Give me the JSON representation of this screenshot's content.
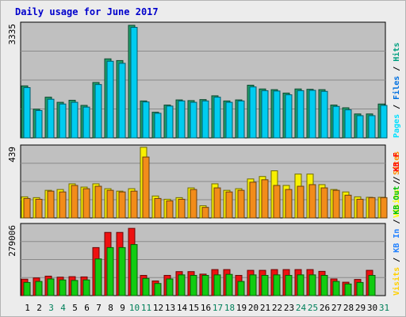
{
  "chart_data": {
    "type": "bar",
    "title": "Daily usage for June 2017",
    "categories": [
      "1",
      "2",
      "3",
      "4",
      "5",
      "6",
      "7",
      "8",
      "9",
      "10",
      "11",
      "12",
      "13",
      "14",
      "15",
      "16",
      "17",
      "18",
      "19",
      "20",
      "21",
      "22",
      "23",
      "24",
      "25",
      "26",
      "27",
      "28",
      "29",
      "30",
      "31"
    ],
    "weekend_days": [
      "3",
      "4",
      "10",
      "11",
      "17",
      "18",
      "24",
      "25",
      "31"
    ],
    "panels": [
      {
        "id": "top",
        "max_label": "3335",
        "ylim": [
          0,
          3335
        ],
        "legend": [
          "Pages",
          "Files",
          "Hits"
        ],
        "legend_colors": [
          "#00e0ff",
          "#0070e0",
          "#00a080"
        ],
        "series": [
          {
            "name": "Hits",
            "color": "#1f9e6a",
            "values": [
              1520,
              840,
              1190,
              1040,
              1100,
              950,
              1620,
              2310,
              2260,
              3290,
              1080,
              750,
              960,
              1110,
              1090,
              1120,
              1230,
              1080,
              1110,
              1540,
              1430,
              1410,
              1310,
              1430,
              1420,
              1410,
              960,
              880,
              700,
              700,
              990
            ]
          },
          {
            "name": "Pages",
            "color": "#00ccf0",
            "values": [
              1470,
              800,
              1130,
              990,
              1040,
              900,
              1560,
              2240,
              2180,
              3230,
              1050,
              720,
              930,
              1080,
              1040,
              1080,
              1190,
              1040,
              1080,
              1490,
              1380,
              1370,
              1260,
              1380,
              1390,
              1360,
              920,
              820,
              650,
              650,
              950
            ]
          }
        ]
      },
      {
        "id": "mid",
        "max_label": "439",
        "ylim": [
          0,
          439
        ],
        "legend": [
          "Visits",
          "Sites"
        ],
        "legend_colors": [
          "#ffff00",
          "#ff8c00"
        ],
        "series": [
          {
            "name": "Visits",
            "color": "#f8f000",
            "values": [
              130,
              125,
              170,
              175,
              210,
              190,
              210,
              180,
              165,
              180,
              435,
              135,
              115,
              125,
              185,
              75,
              210,
              170,
              180,
              240,
              255,
              290,
              200,
              270,
              270,
              205,
              175,
              160,
              130,
              127,
              127
            ]
          },
          {
            "name": "Sites",
            "color": "#f28c1a",
            "values": [
              120,
              115,
              165,
              160,
              200,
              180,
              195,
              170,
              160,
              165,
              375,
              120,
              105,
              115,
              175,
              65,
              185,
              160,
              170,
              220,
              235,
              200,
              175,
              195,
              205,
              185,
              170,
              140,
              115,
              125,
              125
            ]
          }
        ]
      },
      {
        "id": "bot",
        "max_label": "279006",
        "ylim": [
          0,
          279006
        ],
        "legend": [
          "Visits",
          "KB In",
          "KB Out",
          "KB F"
        ],
        "legend_colors": [
          "#ffd000",
          "#2080ff",
          "#00c000",
          "#ff0000"
        ],
        "series": [
          {
            "name": "KB F",
            "color": "#ee1111",
            "values": [
              65000,
              70000,
              77000,
              73000,
              75000,
              74000,
              190000,
              250000,
              250000,
              266000,
              80000,
              58000,
              80000,
              95000,
              95000,
              85000,
              103000,
              103000,
              80000,
              100000,
              100000,
              103000,
              103000,
              103000,
              103000,
              96000,
              66000,
              53000,
              64000,
              100000,
              0
            ]
          },
          {
            "name": "KB Out",
            "color": "#11cc11",
            "values": [
              52000,
              56000,
              66000,
              62000,
              60000,
              62000,
              145000,
              190000,
              190000,
              202000,
              68000,
              48000,
              66000,
              82000,
              80000,
              80000,
              82000,
              84000,
              56000,
              82000,
              80000,
              82000,
              80000,
              82000,
              82000,
              80000,
              56000,
              46000,
              52000,
              80000,
              0
            ]
          }
        ]
      }
    ]
  }
}
